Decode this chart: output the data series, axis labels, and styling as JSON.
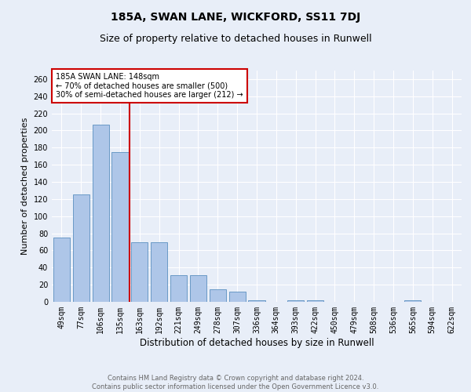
{
  "title1": "185A, SWAN LANE, WICKFORD, SS11 7DJ",
  "title2": "Size of property relative to detached houses in Runwell",
  "xlabel": "Distribution of detached houses by size in Runwell",
  "ylabel": "Number of detached properties",
  "categories": [
    "49sqm",
    "77sqm",
    "106sqm",
    "135sqm",
    "163sqm",
    "192sqm",
    "221sqm",
    "249sqm",
    "278sqm",
    "307sqm",
    "336sqm",
    "364sqm",
    "393sqm",
    "422sqm",
    "450sqm",
    "479sqm",
    "508sqm",
    "536sqm",
    "565sqm",
    "594sqm",
    "622sqm"
  ],
  "values": [
    75,
    125,
    207,
    175,
    70,
    70,
    31,
    31,
    15,
    12,
    2,
    0,
    2,
    2,
    0,
    0,
    0,
    0,
    2,
    0,
    0
  ],
  "bar_color": "#aec6e8",
  "bar_edge_color": "#5a8fc0",
  "vline_x": 3.5,
  "vline_color": "#cc0000",
  "annotation_title": "185A SWAN LANE: 148sqm",
  "annotation_line1": "← 70% of detached houses are smaller (500)",
  "annotation_line2": "30% of semi-detached houses are larger (212) →",
  "annotation_box_color": "#cc0000",
  "ylim": [
    0,
    270
  ],
  "yticks": [
    0,
    20,
    40,
    60,
    80,
    100,
    120,
    140,
    160,
    180,
    200,
    220,
    240,
    260
  ],
  "background_color": "#e8eef8",
  "footer1": "Contains HM Land Registry data © Crown copyright and database right 2024.",
  "footer2": "Contains public sector information licensed under the Open Government Licence v3.0.",
  "grid_color": "#ffffff",
  "title_fontsize": 10,
  "subtitle_fontsize": 9,
  "tick_fontsize": 7,
  "ylabel_fontsize": 8,
  "xlabel_fontsize": 8.5,
  "footer_fontsize": 6,
  "footer_color": "#666666"
}
